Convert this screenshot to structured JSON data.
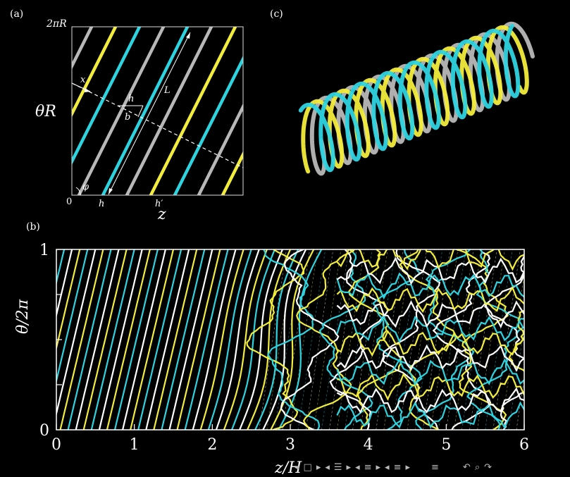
{
  "panel_a": {
    "label": "(a)",
    "y_top_tick": "2πR",
    "y_zero_tick": "0",
    "y_label": "θR",
    "x_label": "z",
    "annotations": {
      "x": "x",
      "h": "h",
      "b": "b",
      "L": "L",
      "phi": "φ",
      "h_bottom": "h",
      "hprime_bottom": "h′"
    }
  },
  "panel_c": {
    "label": "(c)"
  },
  "panel_b": {
    "label": "(b)"
  },
  "chart_data": {
    "type": "line",
    "xlabel": "z/H",
    "ylabel": "θ/2π",
    "xlim": [
      0,
      6
    ],
    "ylim": [
      0,
      1
    ],
    "x_ticks": [
      "0",
      "1",
      "2",
      "3",
      "4",
      "5",
      "6"
    ],
    "y_ticks": [
      "0",
      "1"
    ],
    "colors": {
      "yellow": "#f2ec3c",
      "cyan": "#2ed3e0",
      "white": "#ffffff",
      "gray": "#b8b8b8"
    }
  },
  "nav": {
    "first": "◂",
    "frame": "□",
    "next": "▸",
    "prev_section": "◂",
    "section": "☰",
    "next_section": "▸",
    "prev_sub": "◂",
    "sub": "≡",
    "next_sub": "▸",
    "prev_page": "◂",
    "page": "≡",
    "next_page": "▸",
    "menu": "≡",
    "undo": "↶",
    "search": "⌕",
    "redo": "↷"
  }
}
